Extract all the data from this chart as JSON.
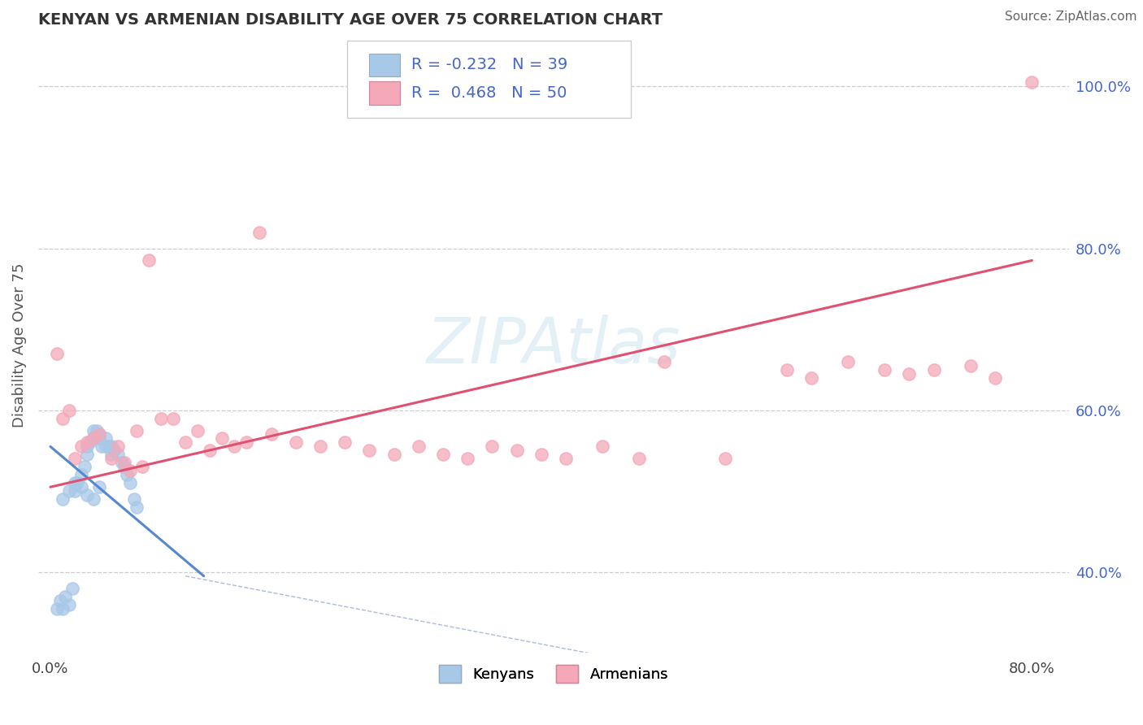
{
  "title": "KENYAN VS ARMENIAN DISABILITY AGE OVER 75 CORRELATION CHART",
  "source": "Source: ZipAtlas.com",
  "ylabel": "Disability Age Over 75",
  "xlim": [
    -0.01,
    0.83
  ],
  "ylim": [
    0.3,
    1.06
  ],
  "yticks_right": [
    0.4,
    0.6,
    0.8,
    1.0
  ],
  "ytick_right_labels": [
    "40.0%",
    "60.0%",
    "80.0%",
    "100.0%"
  ],
  "kenyan_color": "#a8c8e8",
  "armenian_color": "#f4a8b8",
  "kenyan_line_color": "#5588cc",
  "armenian_line_color": "#e05070",
  "kenyan_R": -0.232,
  "armenian_R": 0.468,
  "kenyan_N": 39,
  "armenian_N": 50,
  "background_color": "#ffffff",
  "grid_color": "#cccccc",
  "legend_text_color": "#4466cc",
  "kenyan_scatter_x": [
    0.005,
    0.008,
    0.01,
    0.012,
    0.015,
    0.018,
    0.02,
    0.022,
    0.025,
    0.028,
    0.03,
    0.03,
    0.032,
    0.035,
    0.035,
    0.038,
    0.04,
    0.04,
    0.042,
    0.045,
    0.045,
    0.048,
    0.05,
    0.05,
    0.052,
    0.055,
    0.058,
    0.06,
    0.062,
    0.065,
    0.068,
    0.07,
    0.01,
    0.015,
    0.02,
    0.025,
    0.03,
    0.035,
    0.04
  ],
  "kenyan_scatter_y": [
    0.355,
    0.365,
    0.355,
    0.37,
    0.36,
    0.38,
    0.5,
    0.51,
    0.52,
    0.53,
    0.545,
    0.555,
    0.56,
    0.565,
    0.575,
    0.575,
    0.565,
    0.57,
    0.555,
    0.555,
    0.565,
    0.555,
    0.545,
    0.555,
    0.55,
    0.545,
    0.535,
    0.53,
    0.52,
    0.51,
    0.49,
    0.48,
    0.49,
    0.5,
    0.51,
    0.505,
    0.495,
    0.49,
    0.505
  ],
  "armenian_scatter_x": [
    0.005,
    0.01,
    0.015,
    0.02,
    0.025,
    0.03,
    0.035,
    0.04,
    0.05,
    0.055,
    0.06,
    0.065,
    0.07,
    0.075,
    0.08,
    0.09,
    0.1,
    0.11,
    0.12,
    0.13,
    0.14,
    0.15,
    0.16,
    0.17,
    0.18,
    0.2,
    0.22,
    0.24,
    0.26,
    0.28,
    0.3,
    0.32,
    0.34,
    0.36,
    0.38,
    0.4,
    0.42,
    0.45,
    0.48,
    0.5,
    0.55,
    0.6,
    0.62,
    0.65,
    0.68,
    0.7,
    0.72,
    0.75,
    0.77,
    0.8
  ],
  "armenian_scatter_y": [
    0.67,
    0.59,
    0.6,
    0.54,
    0.555,
    0.56,
    0.565,
    0.57,
    0.54,
    0.555,
    0.535,
    0.525,
    0.575,
    0.53,
    0.785,
    0.59,
    0.59,
    0.56,
    0.575,
    0.55,
    0.565,
    0.555,
    0.56,
    0.82,
    0.57,
    0.56,
    0.555,
    0.56,
    0.55,
    0.545,
    0.555,
    0.545,
    0.54,
    0.555,
    0.55,
    0.545,
    0.54,
    0.555,
    0.54,
    0.66,
    0.54,
    0.65,
    0.64,
    0.66,
    0.65,
    0.645,
    0.65,
    0.655,
    0.64,
    1.005
  ],
  "kenyan_line_x": [
    0.0,
    0.125
  ],
  "kenyan_line_y": [
    0.555,
    0.395
  ],
  "armenian_line_x": [
    0.0,
    0.8
  ],
  "armenian_line_y": [
    0.505,
    0.785
  ],
  "ref_line_x": [
    0.11,
    0.8
  ],
  "ref_line_y": [
    0.395,
    0.195
  ]
}
